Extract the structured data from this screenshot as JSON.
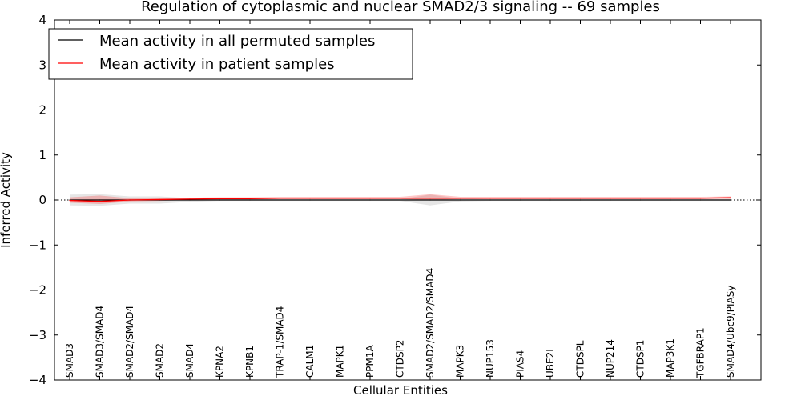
{
  "chart_data": {
    "type": "line",
    "title": "Regulation of cytoplasmic and nuclear SMAD2/3 signaling -- 69 samples",
    "xlabel": "Cellular Entities",
    "ylabel": "Inferred Activity",
    "ylim": [
      -4,
      4
    ],
    "yticks": [
      -4,
      -3,
      -2,
      -1,
      0,
      1,
      2,
      3,
      4
    ],
    "ytick_labels": [
      "−4",
      "−3",
      "−2",
      "−1",
      "0",
      "1",
      "2",
      "3",
      "4"
    ],
    "legend_location": "top-left",
    "categories": [
      "SMAD3",
      "SMAD3/SMAD4",
      "SMAD2/SMAD4",
      "SMAD2",
      "SMAD4",
      "KPNA2",
      "KPNB1",
      "TRAP-1/SMAD4",
      "CALM1",
      "MAPK1",
      "PPM1A",
      "CTDSP2",
      "SMAD2/SMAD2/SMAD4",
      "MAPK3",
      "NUP153",
      "PIAS4",
      "UBE2I",
      "CTDSPL",
      "NUP214",
      "CTDSP1",
      "MAP3K1",
      "TGFBRAP1",
      "SMAD4/Ubc9/PIASy"
    ],
    "series": [
      {
        "name": "Mean activity in all permuted samples",
        "color": "#000000",
        "values": [
          0,
          0,
          0,
          0,
          0,
          0,
          0,
          0,
          0,
          0,
          0,
          0,
          0,
          0,
          0,
          0,
          0,
          0,
          0,
          0,
          0,
          0,
          0
        ],
        "band_lower": [
          -0.12,
          -0.13,
          -0.08,
          -0.08,
          -0.04,
          -0.02,
          -0.02,
          -0.02,
          -0.02,
          -0.02,
          -0.02,
          -0.02,
          -0.12,
          -0.03,
          -0.02,
          -0.02,
          -0.02,
          -0.02,
          -0.02,
          -0.02,
          -0.02,
          -0.02,
          -0.02
        ],
        "band_upper": [
          0.12,
          0.13,
          0.08,
          0.08,
          0.04,
          0.02,
          0.02,
          0.02,
          0.02,
          0.02,
          0.02,
          0.02,
          0.12,
          0.03,
          0.02,
          0.02,
          0.02,
          0.02,
          0.02,
          0.02,
          0.02,
          0.02,
          0.02
        ]
      },
      {
        "name": "Mean activity in patient samples",
        "color": "#ff0000",
        "values": [
          -0.01,
          -0.03,
          0,
          0.01,
          0.02,
          0.03,
          0.03,
          0.04,
          0.04,
          0.04,
          0.04,
          0.04,
          0.04,
          0.04,
          0.04,
          0.04,
          0.04,
          0.04,
          0.04,
          0.04,
          0.04,
          0.04,
          0.05
        ],
        "band_lower": [
          -0.06,
          -0.09,
          -0.03,
          -0.02,
          0,
          0.01,
          0.01,
          0.02,
          0.02,
          0.02,
          0.02,
          0.02,
          0,
          0.02,
          0.02,
          0.02,
          0.02,
          0.02,
          0.02,
          0.02,
          0.02,
          0.02,
          0.02
        ],
        "band_upper": [
          0.06,
          0.1,
          0.04,
          0.04,
          0.05,
          0.06,
          0.06,
          0.07,
          0.07,
          0.07,
          0.07,
          0.07,
          0.13,
          0.07,
          0.07,
          0.07,
          0.07,
          0.07,
          0.07,
          0.07,
          0.07,
          0.07,
          0.08
        ]
      }
    ]
  }
}
